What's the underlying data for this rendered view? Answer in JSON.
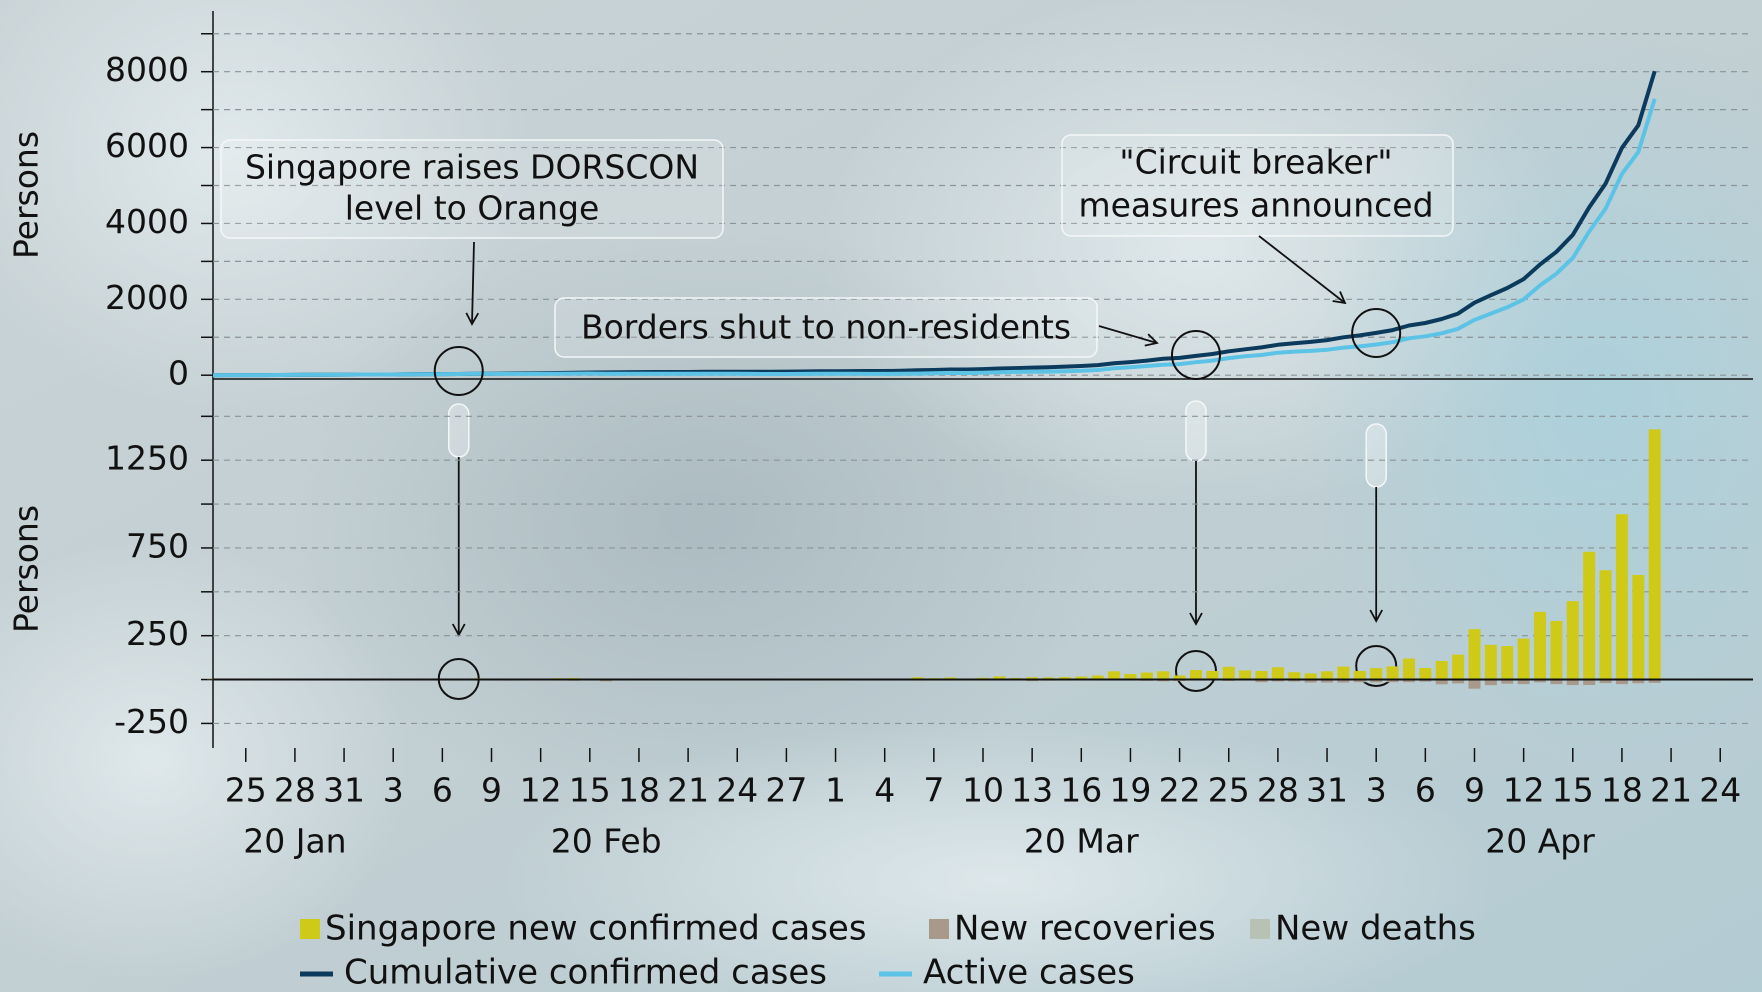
{
  "chart_data": [
    {
      "type": "line",
      "ylabel": "Persons",
      "ylim": [
        -100,
        9600
      ],
      "yticks": [
        0,
        2000,
        4000,
        6000,
        8000
      ],
      "minor_yticks": [
        1000,
        3000,
        5000,
        7000,
        9000
      ],
      "grid": true,
      "xlim": [
        "2020-01-23",
        "2020-04-26"
      ],
      "x": [
        "2020-01-23",
        "2020-01-24",
        "2020-01-25",
        "2020-01-26",
        "2020-01-27",
        "2020-01-28",
        "2020-01-29",
        "2020-01-30",
        "2020-01-31",
        "2020-02-01",
        "2020-02-02",
        "2020-02-03",
        "2020-02-04",
        "2020-02-05",
        "2020-02-06",
        "2020-02-07",
        "2020-02-08",
        "2020-02-09",
        "2020-02-10",
        "2020-02-11",
        "2020-02-12",
        "2020-02-13",
        "2020-02-14",
        "2020-02-15",
        "2020-02-16",
        "2020-02-17",
        "2020-02-18",
        "2020-02-19",
        "2020-02-20",
        "2020-02-21",
        "2020-02-22",
        "2020-02-23",
        "2020-02-24",
        "2020-02-25",
        "2020-02-26",
        "2020-02-27",
        "2020-02-28",
        "2020-02-29",
        "2020-03-01",
        "2020-03-02",
        "2020-03-03",
        "2020-03-04",
        "2020-03-05",
        "2020-03-06",
        "2020-03-07",
        "2020-03-08",
        "2020-03-09",
        "2020-03-10",
        "2020-03-11",
        "2020-03-12",
        "2020-03-13",
        "2020-03-14",
        "2020-03-15",
        "2020-03-16",
        "2020-03-17",
        "2020-03-18",
        "2020-03-19",
        "2020-03-20",
        "2020-03-21",
        "2020-03-22",
        "2020-03-23",
        "2020-03-24",
        "2020-03-25",
        "2020-03-26",
        "2020-03-27",
        "2020-03-28",
        "2020-03-29",
        "2020-03-30",
        "2020-03-31",
        "2020-04-01",
        "2020-04-02",
        "2020-04-03",
        "2020-04-04",
        "2020-04-05",
        "2020-04-06",
        "2020-04-07",
        "2020-04-08",
        "2020-04-09",
        "2020-04-10",
        "2020-04-11",
        "2020-04-12",
        "2020-04-13",
        "2020-04-14",
        "2020-04-15",
        "2020-04-16",
        "2020-04-17",
        "2020-04-18",
        "2020-04-19",
        "2020-04-20"
      ],
      "series": [
        {
          "name": "Cumulative confirmed cases",
          "color": "#0b3a5c",
          "values": [
            1,
            3,
            4,
            4,
            5,
            7,
            10,
            13,
            16,
            18,
            18,
            18,
            24,
            28,
            30,
            33,
            40,
            43,
            45,
            47,
            50,
            58,
            67,
            72,
            75,
            77,
            81,
            84,
            84,
            85,
            89,
            89,
            90,
            91,
            93,
            96,
            98,
            102,
            106,
            108,
            110,
            112,
            117,
            130,
            138,
            150,
            150,
            160,
            178,
            187,
            200,
            212,
            226,
            243,
            266,
            313,
            345,
            385,
            432,
            455,
            509,
            558,
            631,
            683,
            732,
            802,
            844,
            879,
            926,
            1000,
            1049,
            1114,
            1189,
            1309,
            1375,
            1481,
            1623,
            1910,
            2108,
            2299,
            2532,
            2918,
            3252,
            3699,
            4427,
            5050,
            5992,
            6588,
            8014
          ]
        },
        {
          "name": "Active cases",
          "color": "#5cc3e6",
          "values": [
            1,
            3,
            4,
            4,
            5,
            7,
            10,
            13,
            16,
            18,
            18,
            18,
            23,
            27,
            28,
            31,
            38,
            39,
            35,
            34,
            35,
            41,
            43,
            46,
            39,
            40,
            39,
            40,
            38,
            37,
            38,
            38,
            37,
            34,
            33,
            33,
            34,
            36,
            36,
            36,
            35,
            34,
            36,
            43,
            51,
            62,
            58,
            66,
            79,
            86,
            90,
            96,
            105,
            117,
            137,
            183,
            210,
            243,
            278,
            293,
            342,
            386,
            451,
            499,
            533,
            592,
            622,
            640,
            670,
            727,
            760,
            809,
            869,
            973,
            1026,
            1105,
            1224,
            1459,
            1625,
            1791,
            1998,
            2368,
            2675,
            3090,
            3787,
            4389,
            5305,
            5880,
            7287
          ]
        }
      ],
      "annotations": [
        {
          "text": [
            "Singapore raises DORSCON",
            "level to Orange"
          ],
          "x": "2020-02-07"
        },
        {
          "text": [
            "Borders shut to non-residents"
          ],
          "x": "2020-03-23"
        },
        {
          "text": [
            "\"Circuit breaker\"",
            "measures announced"
          ],
          "x": "2020-04-03"
        }
      ]
    },
    {
      "type": "bar",
      "stacked": true,
      "ylabel": "Persons",
      "ylim": [
        -390,
        1650
      ],
      "yticks": [
        -250,
        250,
        750,
        1250
      ],
      "minor_yticks": [
        0,
        500,
        1000,
        1500
      ],
      "grid": true,
      "xlim": [
        "2020-01-23",
        "2020-04-26"
      ],
      "xticks": [
        {
          "value": "2020-01-25",
          "label": "25"
        },
        {
          "value": "2020-01-28",
          "label": "28"
        },
        {
          "value": "2020-01-31",
          "label": "31"
        },
        {
          "value": "2020-02-03",
          "label": "3"
        },
        {
          "value": "2020-02-06",
          "label": "6"
        },
        {
          "value": "2020-02-09",
          "label": "9"
        },
        {
          "value": "2020-02-12",
          "label": "12"
        },
        {
          "value": "2020-02-15",
          "label": "15"
        },
        {
          "value": "2020-02-18",
          "label": "18"
        },
        {
          "value": "2020-02-21",
          "label": "21"
        },
        {
          "value": "2020-02-24",
          "label": "24"
        },
        {
          "value": "2020-02-27",
          "label": "27"
        },
        {
          "value": "2020-03-01",
          "label": "1"
        },
        {
          "value": "2020-03-04",
          "label": "4"
        },
        {
          "value": "2020-03-07",
          "label": "7"
        },
        {
          "value": "2020-03-10",
          "label": "10"
        },
        {
          "value": "2020-03-13",
          "label": "13"
        },
        {
          "value": "2020-03-16",
          "label": "16"
        },
        {
          "value": "2020-03-19",
          "label": "19"
        },
        {
          "value": "2020-03-22",
          "label": "22"
        },
        {
          "value": "2020-03-25",
          "label": "25"
        },
        {
          "value": "2020-03-28",
          "label": "28"
        },
        {
          "value": "2020-03-31",
          "label": "31"
        },
        {
          "value": "2020-04-03",
          "label": "3"
        },
        {
          "value": "2020-04-06",
          "label": "6"
        },
        {
          "value": "2020-04-09",
          "label": "9"
        },
        {
          "value": "2020-04-12",
          "label": "12"
        },
        {
          "value": "2020-04-15",
          "label": "15"
        },
        {
          "value": "2020-04-18",
          "label": "18"
        },
        {
          "value": "2020-04-21",
          "label": "21"
        },
        {
          "value": "2020-04-24",
          "label": "24"
        }
      ],
      "month_labels": [
        {
          "value": "2020-01-28",
          "label": "20 Jan"
        },
        {
          "value": "2020-02-16",
          "label": "20 Feb"
        },
        {
          "value": "2020-03-16",
          "label": "20 Mar"
        },
        {
          "value": "2020-04-13",
          "label": "20 Apr"
        }
      ],
      "x": [
        "2020-01-23",
        "2020-01-24",
        "2020-01-25",
        "2020-01-26",
        "2020-01-27",
        "2020-01-28",
        "2020-01-29",
        "2020-01-30",
        "2020-01-31",
        "2020-02-01",
        "2020-02-02",
        "2020-02-03",
        "2020-02-04",
        "2020-02-05",
        "2020-02-06",
        "2020-02-07",
        "2020-02-08",
        "2020-02-09",
        "2020-02-10",
        "2020-02-11",
        "2020-02-12",
        "2020-02-13",
        "2020-02-14",
        "2020-02-15",
        "2020-02-16",
        "2020-02-17",
        "2020-02-18",
        "2020-02-19",
        "2020-02-20",
        "2020-02-21",
        "2020-02-22",
        "2020-02-23",
        "2020-02-24",
        "2020-02-25",
        "2020-02-26",
        "2020-02-27",
        "2020-02-28",
        "2020-02-29",
        "2020-03-01",
        "2020-03-02",
        "2020-03-03",
        "2020-03-04",
        "2020-03-05",
        "2020-03-06",
        "2020-03-07",
        "2020-03-08",
        "2020-03-09",
        "2020-03-10",
        "2020-03-11",
        "2020-03-12",
        "2020-03-13",
        "2020-03-14",
        "2020-03-15",
        "2020-03-16",
        "2020-03-17",
        "2020-03-18",
        "2020-03-19",
        "2020-03-20",
        "2020-03-21",
        "2020-03-22",
        "2020-03-23",
        "2020-03-24",
        "2020-03-25",
        "2020-03-26",
        "2020-03-27",
        "2020-03-28",
        "2020-03-29",
        "2020-03-30",
        "2020-03-31",
        "2020-04-01",
        "2020-04-02",
        "2020-04-03",
        "2020-04-04",
        "2020-04-05",
        "2020-04-06",
        "2020-04-07",
        "2020-04-08",
        "2020-04-09",
        "2020-04-10",
        "2020-04-11",
        "2020-04-12",
        "2020-04-13",
        "2020-04-14",
        "2020-04-15",
        "2020-04-16",
        "2020-04-17",
        "2020-04-18",
        "2020-04-19",
        "2020-04-20"
      ],
      "series": [
        {
          "name": "Singapore new confirmed cases",
          "color": "#cfca18",
          "values": [
            1,
            2,
            1,
            0,
            1,
            2,
            3,
            3,
            3,
            2,
            0,
            0,
            6,
            4,
            2,
            3,
            7,
            3,
            2,
            2,
            3,
            8,
            9,
            5,
            3,
            2,
            4,
            3,
            0,
            1,
            4,
            0,
            1,
            1,
            2,
            3,
            2,
            4,
            4,
            2,
            2,
            2,
            5,
            13,
            8,
            12,
            0,
            10,
            18,
            9,
            13,
            12,
            14,
            17,
            23,
            47,
            32,
            40,
            47,
            23,
            54,
            49,
            73,
            52,
            49,
            70,
            42,
            35,
            47,
            74,
            49,
            65,
            75,
            120,
            66,
            106,
            142,
            287,
            198,
            191,
            233,
            386,
            334,
            447,
            728,
            623,
            942,
            596,
            1426
          ]
        },
        {
          "name": "New recoveries",
          "color": "#a8998b",
          "values": [
            0,
            0,
            0,
            0,
            0,
            0,
            0,
            0,
            0,
            0,
            0,
            0,
            -1,
            0,
            -1,
            0,
            0,
            -2,
            -6,
            -3,
            -2,
            -2,
            -7,
            -2,
            -10,
            -1,
            -5,
            -2,
            -2,
            -2,
            -3,
            0,
            -2,
            -4,
            -3,
            -3,
            -1,
            -2,
            -4,
            -2,
            -3,
            -3,
            -3,
            -6,
            0,
            -1,
            -4,
            -2,
            -5,
            -2,
            -9,
            -6,
            -5,
            -5,
            -3,
            -1,
            -5,
            -7,
            -10,
            -8,
            -5,
            -5,
            -8,
            -4,
            -15,
            -11,
            -11,
            -17,
            -17,
            -17,
            -15,
            -16,
            -15,
            -15,
            -12,
            -27,
            -22,
            -52,
            -32,
            -24,
            -26,
            -16,
            -26,
            -31,
            -31,
            -20,
            -26,
            -21,
            -19
          ]
        },
        {
          "name": "New deaths",
          "color": "#b7c1b4",
          "values": [
            0,
            0,
            0,
            0,
            0,
            0,
            0,
            0,
            0,
            0,
            0,
            0,
            0,
            0,
            0,
            0,
            0,
            0,
            0,
            0,
            0,
            0,
            0,
            0,
            0,
            0,
            0,
            0,
            0,
            0,
            0,
            0,
            0,
            0,
            0,
            0,
            0,
            0,
            0,
            0,
            0,
            0,
            0,
            0,
            0,
            0,
            0,
            0,
            0,
            0,
            0,
            0,
            0,
            0,
            0,
            0,
            0,
            0,
            -2,
            0,
            0,
            0,
            0,
            0,
            0,
            0,
            -1,
            0,
            0,
            0,
            -1,
            0,
            0,
            -1,
            -1,
            0,
            -1,
            0,
            0,
            -1,
            0,
            0,
            -1,
            -1,
            0,
            -1,
            0,
            0,
            0
          ]
        }
      ]
    }
  ]
}
